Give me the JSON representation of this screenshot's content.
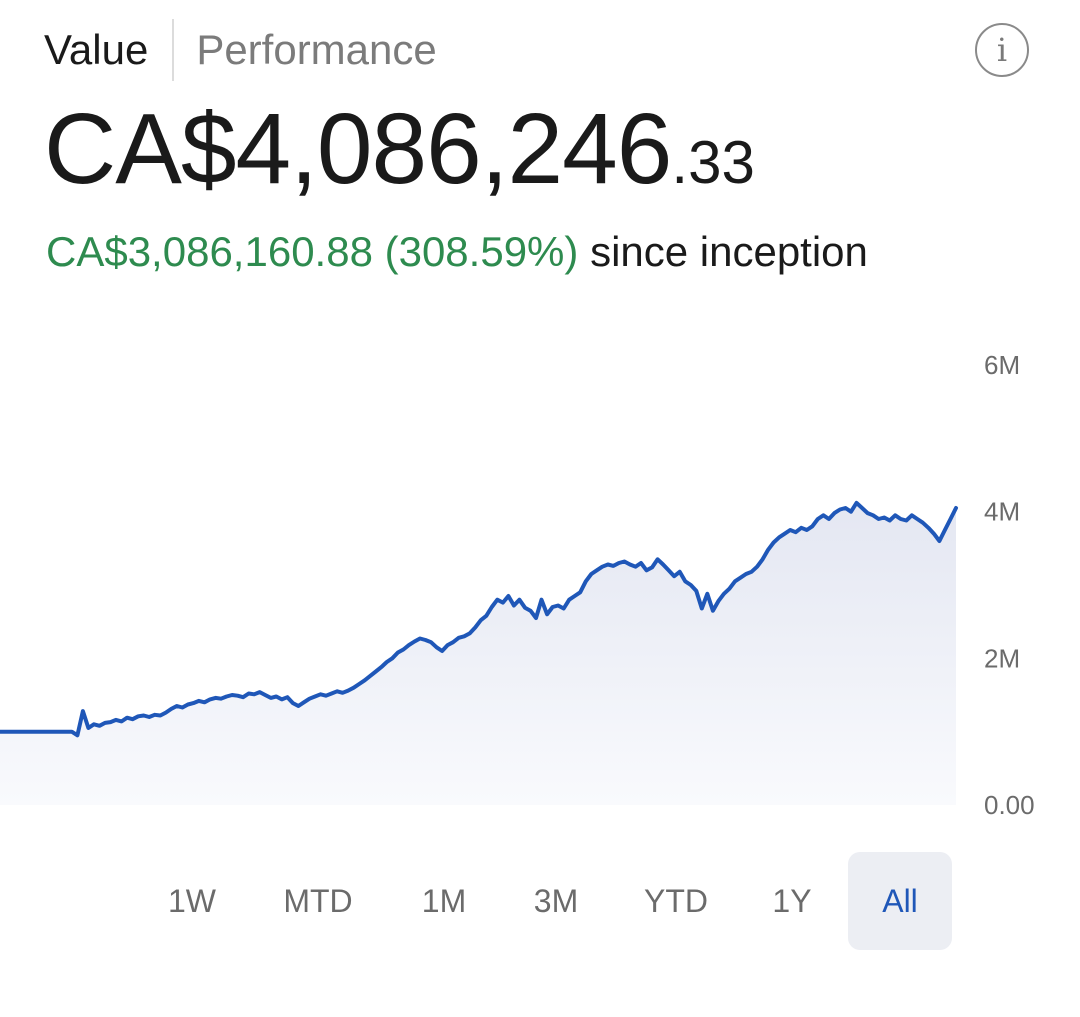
{
  "tabs": [
    {
      "label": "Value",
      "active": true
    },
    {
      "label": "Performance",
      "active": false
    }
  ],
  "info_icon": {
    "name": "info-icon",
    "glyph": "i"
  },
  "balance": {
    "main": "CA$4,086,246",
    "cents": ".33"
  },
  "gain": {
    "amount": "CA$3,086,160.88 (308.59%)",
    "suffix": "since inception"
  },
  "colors": {
    "gain": "#2e8b4f",
    "line": "#1f57b8",
    "selected_range_bg": "#eceef3",
    "selected_range_text": "#1f57b8"
  },
  "time_ranges": [
    {
      "label": "1W",
      "selected": false
    },
    {
      "label": "MTD",
      "selected": false
    },
    {
      "label": "1M",
      "selected": false
    },
    {
      "label": "3M",
      "selected": false
    },
    {
      "label": "YTD",
      "selected": false
    },
    {
      "label": "1Y",
      "selected": false
    },
    {
      "label": "All",
      "selected": true
    }
  ],
  "chart_data": {
    "type": "area",
    "title": "",
    "xlabel": "",
    "ylabel": "",
    "ylim": [
      0,
      6000000
    ],
    "y_ticks": [
      {
        "value": 0,
        "label": "0.00"
      },
      {
        "value": 2000000,
        "label": "2M"
      },
      {
        "value": 4000000,
        "label": "4M"
      },
      {
        "value": 6000000,
        "label": "6M"
      }
    ],
    "grid": false,
    "series": [
      {
        "values": [
          1000000,
          1000000,
          1000000,
          1000000,
          1000000,
          1000000,
          1000000,
          1000000,
          1000000,
          1000000,
          1000000,
          1000000,
          1000000,
          1000000,
          950000,
          1280000,
          1050000,
          1100000,
          1080000,
          1120000,
          1130000,
          1160000,
          1140000,
          1190000,
          1170000,
          1210000,
          1220000,
          1200000,
          1230000,
          1220000,
          1260000,
          1310000,
          1350000,
          1330000,
          1370000,
          1390000,
          1420000,
          1400000,
          1440000,
          1460000,
          1450000,
          1480000,
          1500000,
          1490000,
          1470000,
          1520000,
          1510000,
          1540000,
          1500000,
          1460000,
          1480000,
          1440000,
          1470000,
          1390000,
          1350000,
          1400000,
          1450000,
          1480000,
          1510000,
          1490000,
          1520000,
          1550000,
          1530000,
          1560000,
          1600000,
          1650000,
          1700000,
          1760000,
          1820000,
          1880000,
          1950000,
          2000000,
          2080000,
          2120000,
          2180000,
          2230000,
          2270000,
          2250000,
          2220000,
          2150000,
          2100000,
          2180000,
          2220000,
          2280000,
          2300000,
          2340000,
          2420000,
          2520000,
          2580000,
          2700000,
          2800000,
          2760000,
          2850000,
          2720000,
          2800000,
          2690000,
          2650000,
          2550000,
          2800000,
          2600000,
          2700000,
          2720000,
          2680000,
          2800000,
          2850000,
          2900000,
          3050000,
          3150000,
          3200000,
          3250000,
          3280000,
          3260000,
          3300000,
          3320000,
          3280000,
          3250000,
          3300000,
          3200000,
          3240000,
          3350000,
          3280000,
          3200000,
          3120000,
          3180000,
          3050000,
          3000000,
          2920000,
          2680000,
          2880000,
          2650000,
          2780000,
          2880000,
          2950000,
          3050000,
          3100000,
          3150000,
          3180000,
          3250000,
          3350000,
          3480000,
          3580000,
          3650000,
          3700000,
          3750000,
          3720000,
          3780000,
          3750000,
          3800000,
          3900000,
          3950000,
          3900000,
          3980000,
          4030000,
          4050000,
          4000000,
          4120000,
          4050000,
          3980000,
          3950000,
          3900000,
          3920000,
          3880000,
          3950000,
          3900000,
          3880000,
          3950000,
          3900000,
          3850000,
          3780000,
          3700000,
          3600000,
          3750000,
          3900000,
          4050000
        ]
      }
    ]
  }
}
